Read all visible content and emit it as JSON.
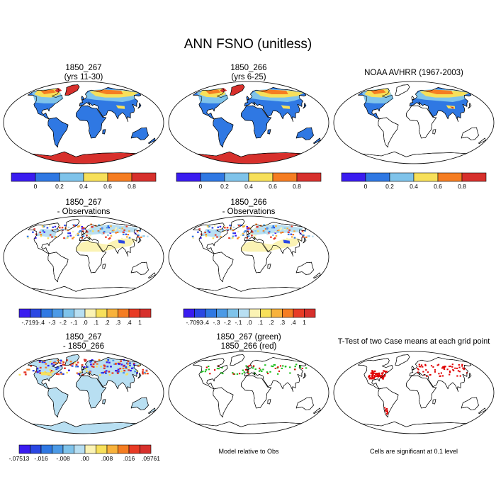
{
  "title": "ANN FSNO (unitless)",
  "colors": {
    "abs6": [
      "#3a1cf0",
      "#2f78e3",
      "#7fc3ea",
      "#f7e05a",
      "#f57d22",
      "#d7302c"
    ],
    "diff12": [
      "#3a1cf0",
      "#2a47e3",
      "#2f78e3",
      "#4c9ae6",
      "#7fc3ea",
      "#b8dff2",
      "#fbf3b4",
      "#f7e05a",
      "#f8b23b",
      "#f57d22",
      "#e83b25",
      "#d7302c"
    ],
    "land": "#2f78e3",
    "high_lat": "#d7302c",
    "mid_band": "#f7e05a",
    "transition": "#7fc3ea",
    "orange": "#f57d22",
    "pale_yellow": "#fbf3b4",
    "light_blue": "#b8dff2",
    "ttest_red": "#e00000",
    "green": "#1fbf1f"
  },
  "chart_data": [
    {
      "type": "heatmap",
      "panel": "p1",
      "title_lines": [
        "1850_267",
        "(yrs 11-30)"
      ],
      "colorbar": {
        "labels": [
          "0",
          "0.2",
          "0.4",
          "0.6",
          "0.8"
        ],
        "colors": "abs6"
      }
    },
    {
      "type": "heatmap",
      "panel": "p2",
      "title_lines": [
        "1850_266",
        "(yrs 6-25)"
      ],
      "colorbar": {
        "labels": [
          "0",
          "0.2",
          "0.4",
          "0.6",
          "0.8"
        ],
        "colors": "abs6"
      }
    },
    {
      "type": "heatmap",
      "panel": "p3",
      "title_lines": [
        "NOAA AVHRR (1967-2003)"
      ],
      "colorbar": {
        "labels": [
          "0",
          "0.2",
          "0.4",
          "0.6",
          "0.8"
        ],
        "colors": "abs6"
      }
    },
    {
      "type": "heatmap",
      "panel": "p4",
      "title_lines": [
        "1850_267",
        "- Observations"
      ],
      "colorbar": {
        "labels": [
          "-.7191",
          "-.4",
          "-.3",
          "-.2",
          "-.1",
          ".0",
          ".1",
          ".2",
          ".3",
          ".4",
          "1"
        ],
        "colors": "diff12"
      }
    },
    {
      "type": "heatmap",
      "panel": "p5",
      "title_lines": [
        "1850_266",
        "- Observations"
      ],
      "colorbar": {
        "labels": [
          "-.7093",
          "-.4",
          "-.3",
          "-.2",
          "-.1",
          ".0",
          ".1",
          ".2",
          ".3",
          ".4",
          "1"
        ],
        "colors": "diff12"
      }
    },
    {
      "type": "heatmap",
      "panel": "p7",
      "title_lines": [
        "1850_267",
        "- 1850_266"
      ],
      "colorbar": {
        "labels": [
          "-.07513",
          "-.016",
          "-.008",
          ".00",
          ".008",
          ".016",
          ".09761"
        ],
        "colors": "diff12"
      }
    },
    {
      "type": "heatmap",
      "panel": "p8",
      "title_lines": [
        "1850_267 (green)",
        "1850_266 (red)"
      ]
    },
    {
      "type": "heatmap",
      "panel": "p9",
      "title_lines": [
        "T-Test of two Case means at each grid point"
      ]
    }
  ],
  "notes": {
    "model_relative": "Model relative to Obs",
    "cells_significant": "Cells are significant at 0.1 level"
  }
}
